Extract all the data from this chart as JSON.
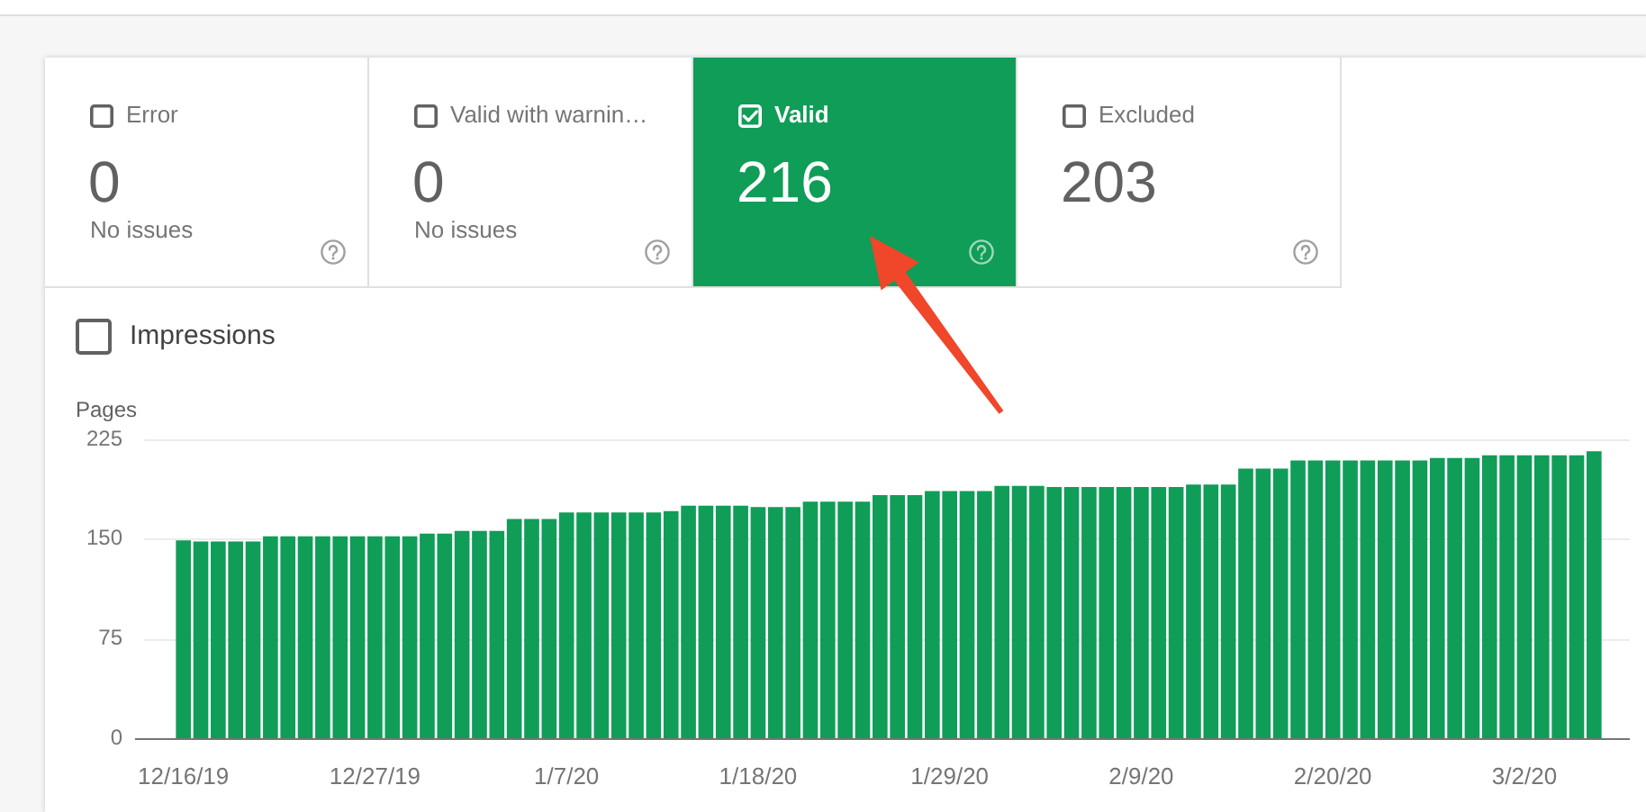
{
  "chart_data": [
    {
      "type": "other",
      "title": "Error",
      "annotations": [
        "0",
        "No issues"
      ]
    },
    {
      "type": "other",
      "title": "Valid with warnin…",
      "annotations": [
        "0",
        "No issues"
      ]
    },
    {
      "type": "other",
      "title": "Valid",
      "color": "#0f9d58",
      "annotations": [
        "216"
      ]
    },
    {
      "type": "other",
      "title": "Excluded",
      "annotations": [
        "203"
      ]
    },
    {
      "type": "bar",
      "ylabel": "Pages",
      "annotations": [
        "Impressions"
      ],
      "categories": [
        "12/16/19",
        null,
        null,
        null,
        null,
        null,
        null,
        null,
        null,
        null,
        null,
        "12/27/19",
        null,
        null,
        null,
        null,
        null,
        null,
        null,
        null,
        null,
        null,
        "1/7/20",
        null,
        null,
        null,
        null,
        null,
        null,
        null,
        null,
        null,
        null,
        "1/18/20",
        null,
        null,
        null,
        null,
        null,
        null,
        null,
        null,
        null,
        null,
        "1/29/20",
        null,
        null,
        null,
        null,
        null,
        null,
        null,
        null,
        null,
        null,
        "2/9/20",
        null,
        null,
        null,
        null,
        null,
        null,
        null,
        null,
        null,
        null,
        "2/20/20",
        null,
        null,
        null,
        null,
        null,
        null,
        null,
        null,
        null,
        null,
        "3/2/20",
        null,
        null,
        null,
        null
      ],
      "values": [
        149,
        148,
        148,
        148,
        148,
        152,
        152,
        152,
        152,
        152,
        152,
        152,
        152,
        152,
        154,
        154,
        156,
        156,
        156,
        165,
        165,
        165,
        170,
        170,
        170,
        170,
        170,
        170,
        171,
        175,
        175,
        175,
        175,
        174,
        174,
        174,
        178,
        178,
        178,
        178,
        183,
        183,
        183,
        186,
        186,
        186,
        186,
        190,
        190,
        190,
        189,
        189,
        189,
        189,
        189,
        189,
        189,
        189,
        191,
        191,
        191,
        203,
        203,
        203,
        209,
        209,
        209,
        209,
        209,
        209,
        209,
        209,
        211,
        211,
        211,
        213,
        213,
        213,
        213,
        213,
        213,
        216
      ],
      "color": "#0f9d58",
      "ylim": [
        0,
        225
      ],
      "yticks": [
        0,
        75,
        150,
        225
      ],
      "grid": "y"
    }
  ]
}
